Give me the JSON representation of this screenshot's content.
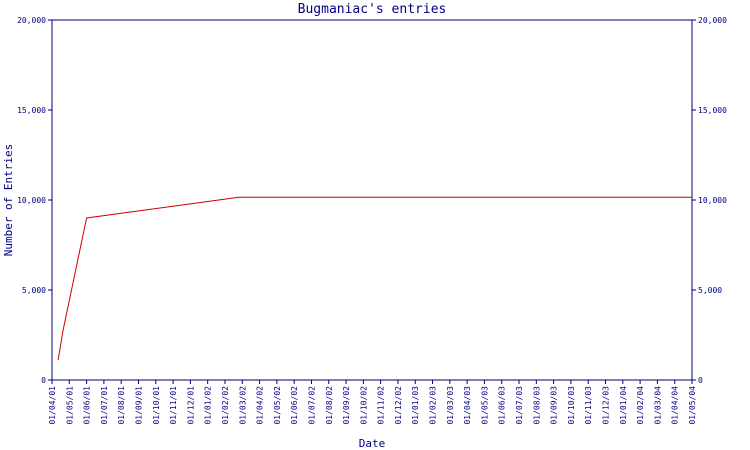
{
  "chart_data": {
    "type": "line",
    "title": "Bugmaniac's entries",
    "xlabel": "Date",
    "ylabel": "Number of Entries",
    "ylim": [
      0,
      20000
    ],
    "y_ticks": [
      "0",
      "5,000",
      "10,000",
      "15,000",
      "20,000"
    ],
    "y_axis_right": true,
    "grid": false,
    "colors": {
      "axis": "#000080",
      "text": "#000080",
      "line": "#cc0000",
      "background": "#ffffff"
    },
    "x_ticks": [
      "01/04/01",
      "01/05/01",
      "01/06/01",
      "01/07/01",
      "01/08/01",
      "01/09/01",
      "01/10/01",
      "01/11/01",
      "01/12/01",
      "01/01/02",
      "01/02/02",
      "01/03/02",
      "01/04/02",
      "01/05/02",
      "01/06/02",
      "01/07/02",
      "01/08/02",
      "01/09/02",
      "01/10/02",
      "01/11/02",
      "01/12/02",
      "01/01/03",
      "01/02/03",
      "01/03/03",
      "01/04/03",
      "01/05/03",
      "01/06/03",
      "01/07/03",
      "01/08/03",
      "01/09/03",
      "01/10/03",
      "01/11/03",
      "01/12/03",
      "01/01/04",
      "01/02/04",
      "01/03/04",
      "01/04/04",
      "01/05/04"
    ],
    "series": [
      {
        "x": [
          "01/04/01",
          "01/05/01",
          "01/06/01",
          "01/03/02",
          "01/05/04"
        ],
        "fractional_x_index": [
          0.35,
          0.65,
          2.0,
          10.8,
          37.0
        ],
        "values": [
          1100,
          2800,
          9000,
          10150,
          10150
        ]
      }
    ]
  }
}
